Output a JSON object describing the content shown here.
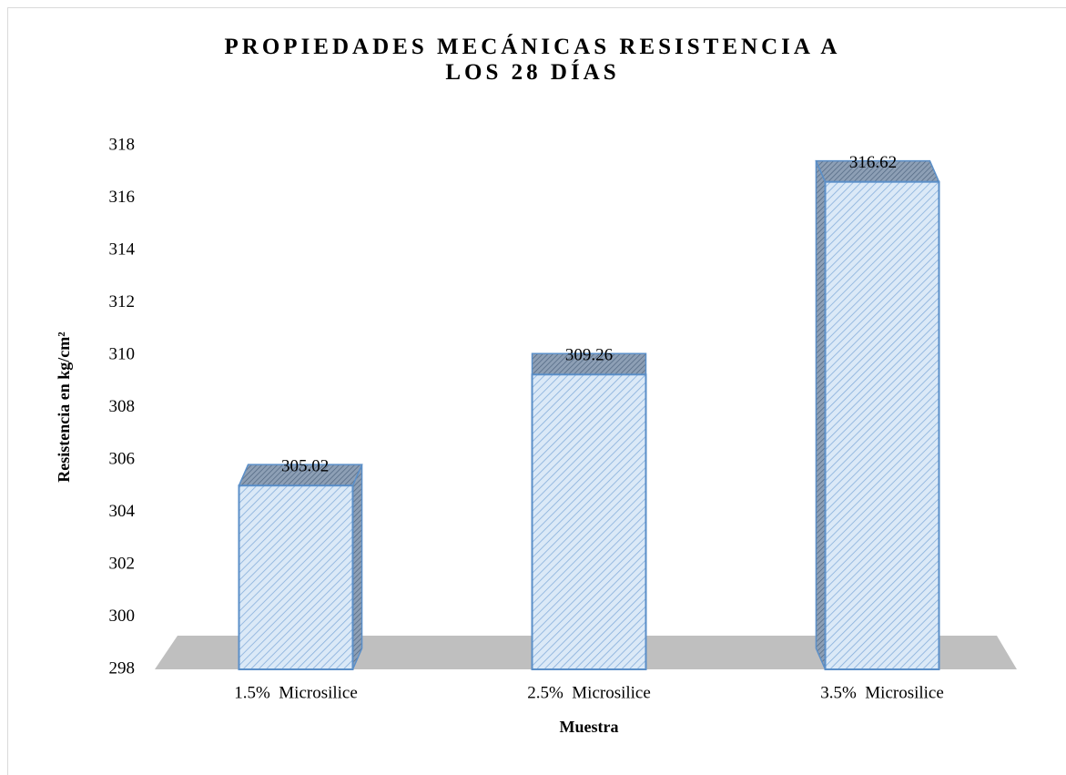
{
  "chart_data": {
    "type": "bar",
    "title": "PROPIEDADES MECÁNICAS RESISTENCIA A LOS 28 DÍAS",
    "x_label": "Muestra",
    "y_label": "Resistencia en kg/cm²",
    "categories": [
      "1.5%  Microsilice",
      "2.5%  Microsilice",
      "3.5%  Microsilice"
    ],
    "values": [
      305.02,
      309.26,
      316.62
    ],
    "color": "#dbe9f7",
    "ylim": [
      298,
      318
    ],
    "yticks": [
      298,
      300,
      302,
      304,
      306,
      308,
      310,
      312,
      314,
      316,
      318
    ],
    "grid": false
  }
}
